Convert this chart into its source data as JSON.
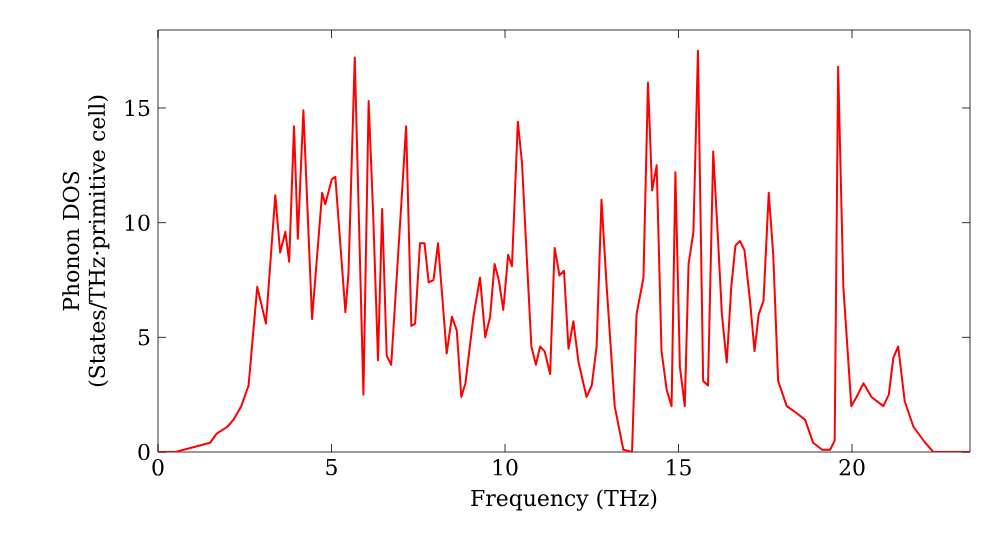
{
  "chart_data": {
    "type": "line",
    "xlabel": "Frequency (THz)",
    "ylabel": "Phonon DOS (States/THz·primitive cell)",
    "xlim": [
      0,
      23.4
    ],
    "ylim": [
      0,
      18.4
    ],
    "xticks": [
      0,
      5,
      10,
      15,
      20
    ],
    "yticks": [
      0,
      5,
      10,
      15
    ],
    "marker": "none",
    "line_style": "solid",
    "series": [
      {
        "color": "#ff0000",
        "x": [
          0,
          0.5,
          1,
          1.5,
          1.69,
          2,
          2.17,
          2.4,
          2.61,
          2.86,
          3.11,
          3.38,
          3.52,
          3.67,
          3.78,
          3.92,
          4.03,
          4.19,
          4.44,
          4.73,
          4.82,
          5.01,
          5.11,
          5.4,
          5.49,
          5.67,
          5.92,
          6.07,
          6.2,
          6.34,
          6.46,
          6.59,
          6.72,
          6.97,
          7.15,
          7.3,
          7.41,
          7.55,
          7.68,
          7.8,
          7.94,
          8.07,
          8.32,
          8.47,
          8.61,
          8.74,
          8.86,
          9.09,
          9.28,
          9.43,
          9.57,
          9.7,
          9.82,
          9.95,
          10.09,
          10.2,
          10.37,
          10.49,
          10.62,
          10.76,
          10.89,
          11.01,
          11.14,
          11.3,
          11.43,
          11.57,
          11.7,
          11.83,
          11.97,
          12.12,
          12.35,
          12.5,
          12.64,
          12.78,
          12.93,
          13.16,
          13.41,
          13.66,
          13.79,
          13.99,
          14.12,
          14.24,
          14.37,
          14.51,
          14.66,
          14.8,
          14.91,
          15.04,
          15.18,
          15.29,
          15.43,
          15.56,
          15.71,
          15.85,
          16.0,
          16.14,
          16.25,
          16.39,
          16.52,
          16.64,
          16.77,
          16.9,
          17.06,
          17.19,
          17.31,
          17.45,
          17.6,
          17.73,
          17.87,
          18.12,
          18.4,
          18.65,
          18.88,
          19.14,
          19.37,
          19.5,
          19.6,
          19.75,
          19.98,
          20.13,
          20.33,
          20.56,
          20.9,
          21.06,
          21.19,
          21.33,
          21.52,
          21.77,
          22.06,
          22.34,
          23.4
        ],
        "values": [
          0,
          0,
          0.2,
          0.4,
          0.8,
          1.1,
          1.4,
          2.0,
          2.9,
          7.2,
          5.6,
          11.2,
          8.7,
          9.6,
          8.3,
          14.2,
          9.3,
          14.9,
          5.8,
          11.3,
          10.8,
          11.9,
          12.0,
          6.1,
          7.8,
          17.2,
          2.5,
          15.3,
          10.4,
          4.0,
          10.6,
          4.2,
          3.8,
          9.8,
          14.2,
          5.5,
          5.6,
          9.1,
          9.1,
          7.4,
          7.5,
          9.1,
          4.3,
          5.9,
          5.3,
          2.4,
          3.0,
          5.9,
          7.6,
          5.0,
          5.9,
          8.2,
          7.5,
          6.2,
          8.6,
          8.1,
          14.4,
          12.6,
          8.7,
          4.6,
          3.8,
          4.6,
          4.4,
          3.4,
          8.9,
          7.7,
          7.9,
          4.5,
          5.7,
          3.9,
          2.4,
          2.9,
          4.6,
          11.0,
          7.2,
          2.0,
          0.1,
          0,
          6.0,
          7.6,
          16.1,
          11.4,
          12.5,
          4.4,
          2.7,
          2.0,
          12.2,
          3.7,
          2.0,
          8.2,
          9.6,
          17.5,
          3.1,
          2.9,
          13.1,
          9.2,
          6.0,
          3.9,
          7.2,
          9.0,
          9.2,
          8.8,
          6.6,
          4.4,
          6.0,
          6.6,
          11.3,
          8.6,
          3.1,
          2.0,
          1.7,
          1.4,
          0.4,
          0.1,
          0.1,
          0.5,
          16.8,
          7.2,
          2.0,
          2.4,
          3.0,
          2.4,
          2.0,
          2.5,
          4.1,
          4.6,
          2.2,
          1.1,
          0.5,
          0,
          0
        ]
      }
    ]
  }
}
